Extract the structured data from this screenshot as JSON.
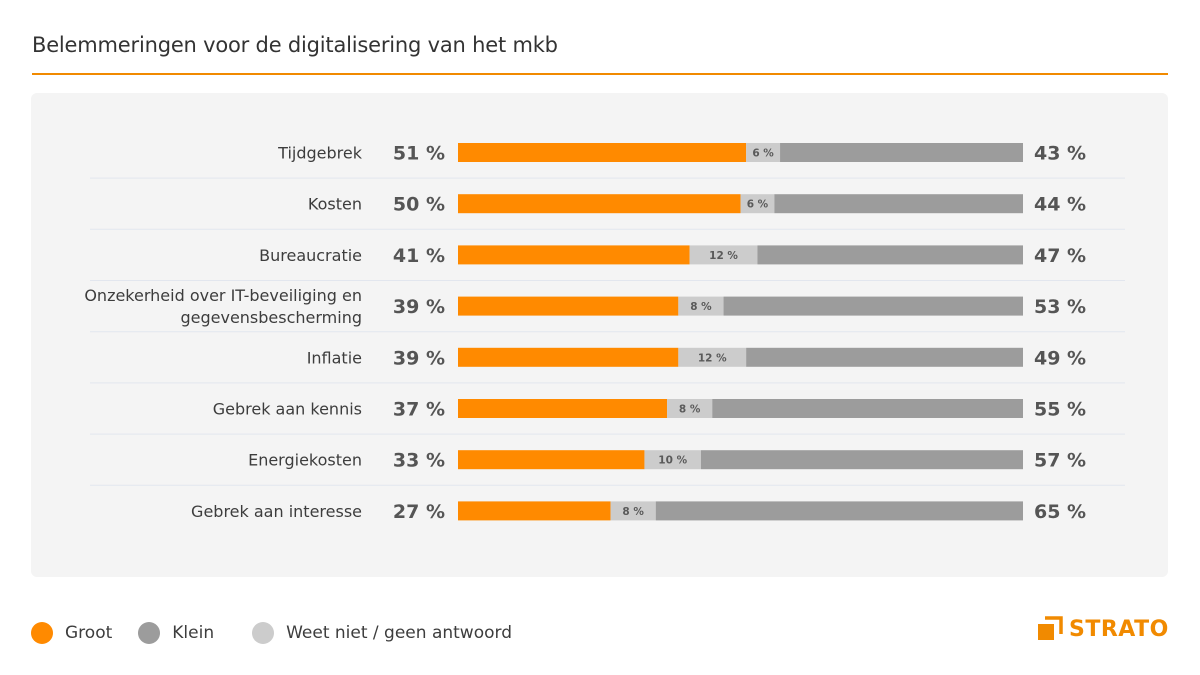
{
  "header": {
    "title": "Belemmeringen voor de digitalisering van het mkb"
  },
  "colors": {
    "groot": "#ff8a00",
    "klein": "#9c9c9c",
    "weet_niet": "#cccccc",
    "accent": "#f18a00",
    "panel": "#f4f4f4"
  },
  "legend": {
    "items": [
      {
        "label": "Groot",
        "color": "#ff8a00"
      },
      {
        "label": "Klein",
        "color": "#9c9c9c"
      },
      {
        "label": "Weet niet / geen antwoord",
        "color": "#cccccc"
      }
    ]
  },
  "logo": {
    "text": "STRATO",
    "icon": "strato-logo-icon"
  },
  "chart_data": {
    "type": "bar",
    "orientation": "horizontal-stacked-100",
    "title": "Belemmeringen voor de digitalisering van het mkb",
    "xlabel": "",
    "ylabel": "",
    "unit": "%",
    "categories": [
      [
        "Tijdgebrek"
      ],
      [
        "Kosten"
      ],
      [
        "Bureaucratie"
      ],
      [
        "Onzekerheid over IT-beveiliging en",
        "gegevensbescherming"
      ],
      [
        "Inflatie"
      ],
      [
        "Gebrek aan kennis"
      ],
      [
        "Energiekosten"
      ],
      [
        "Gebrek aan interesse"
      ]
    ],
    "series": [
      {
        "name": "Groot",
        "values": [
          51,
          50,
          41,
          39,
          39,
          37,
          33,
          27
        ]
      },
      {
        "name": "Weet niet / geen antwoord",
        "values": [
          6,
          6,
          12,
          8,
          12,
          8,
          10,
          8
        ]
      },
      {
        "name": "Klein",
        "values": [
          43,
          44,
          47,
          53,
          49,
          55,
          57,
          65
        ]
      }
    ],
    "value_suffix": " %",
    "legend_position": "bottom-left",
    "grid": false,
    "xlim": [
      0,
      100
    ]
  }
}
